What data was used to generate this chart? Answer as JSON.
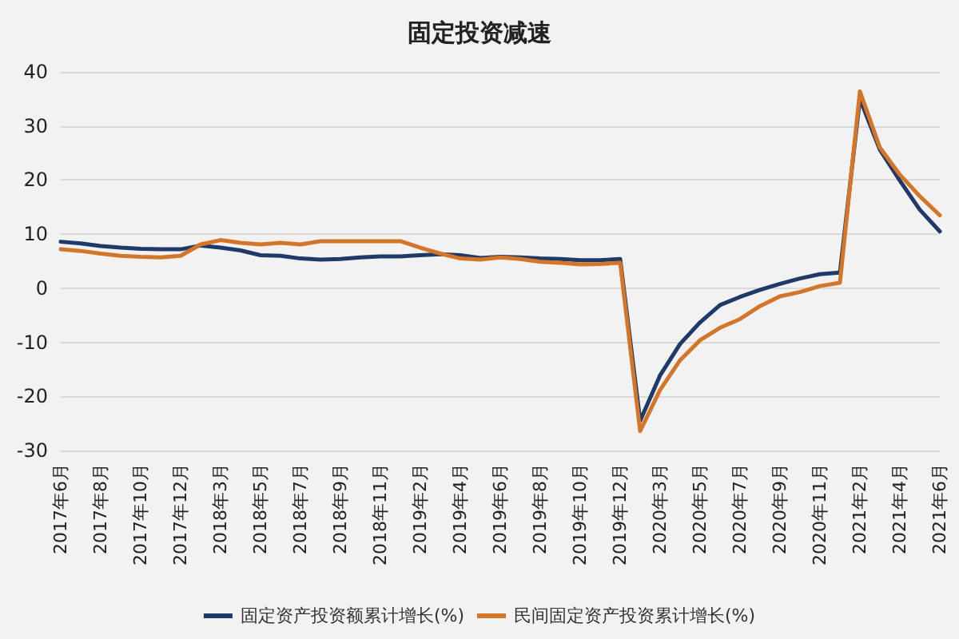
{
  "chart_data": {
    "type": "line",
    "title": "固定投资减速",
    "categories": [
      "2017年6月",
      null,
      "2017年8月",
      null,
      "2017年10月",
      null,
      "2017年12月",
      null,
      "2018年3月",
      null,
      "2018年5月",
      null,
      "2018年7月",
      null,
      "2018年9月",
      null,
      "2018年11月",
      null,
      "2019年2月",
      null,
      "2019年4月",
      null,
      "2019年6月",
      null,
      "2019年8月",
      null,
      "2019年10月",
      null,
      "2019年12月",
      null,
      "2020年3月",
      null,
      "2020年5月",
      null,
      "2020年7月",
      null,
      "2020年9月",
      null,
      "2020年11月",
      null,
      "2021年2月",
      null,
      "2021年4月",
      null,
      "2021年6月"
    ],
    "series": [
      {
        "name": "固定资产投资额累计增长(%)",
        "color": "#1f3a68",
        "values": [
          8.6,
          8.3,
          7.8,
          7.5,
          7.3,
          7.2,
          7.2,
          7.9,
          7.5,
          7.0,
          6.1,
          6.0,
          5.5,
          5.3,
          5.4,
          5.7,
          5.9,
          5.9,
          6.1,
          6.3,
          6.1,
          5.6,
          5.8,
          5.7,
          5.5,
          5.4,
          5.2,
          5.2,
          5.4,
          -24.5,
          -16.1,
          -10.3,
          -6.3,
          -3.1,
          -1.6,
          -0.3,
          0.8,
          1.8,
          2.6,
          2.9,
          35.0,
          25.6,
          19.9,
          14.5,
          10.5
        ]
      },
      {
        "name": "民间固定资产投资累计增长(%)",
        "color": "#d3762a",
        "values": [
          7.2,
          6.9,
          6.4,
          6.0,
          5.8,
          5.7,
          6.0,
          8.1,
          8.9,
          8.4,
          8.1,
          8.4,
          8.1,
          8.7,
          8.7,
          8.7,
          8.7,
          8.7,
          7.5,
          6.4,
          5.5,
          5.3,
          5.7,
          5.4,
          4.9,
          4.7,
          4.4,
          4.5,
          4.7,
          -26.4,
          -18.8,
          -13.3,
          -9.6,
          -7.3,
          -5.7,
          -3.3,
          -1.5,
          -0.7,
          0.4,
          1.0,
          36.4,
          26.0,
          21.0,
          17.0,
          13.5
        ]
      }
    ],
    "ylim": [
      -30,
      40
    ],
    "yticks": [
      -30,
      -20,
      -10,
      0,
      10,
      20,
      30,
      40
    ],
    "grid": "y",
    "legend": "bottom",
    "marker": "none",
    "line_style": "solid"
  }
}
